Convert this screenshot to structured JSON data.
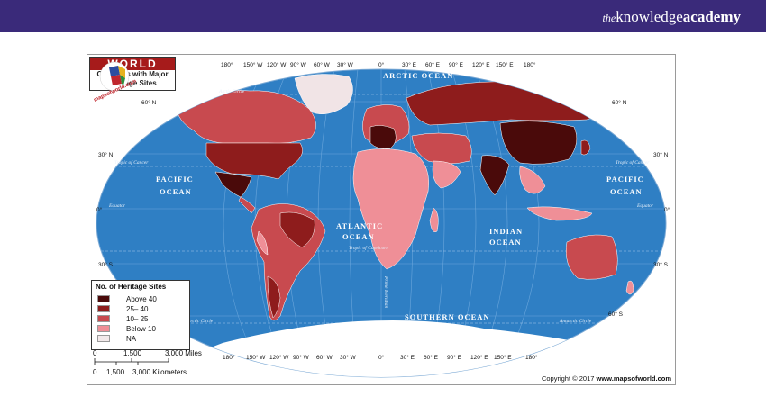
{
  "brand": {
    "the": "the",
    "knowledge": "knowledge",
    "academy": "academy"
  },
  "map": {
    "title": "WORLD",
    "subtitle_line1": "Countries with Major",
    "subtitle_line2": "Heritage Sites",
    "top_longitudes": [
      "180°",
      "150° W",
      "120° W",
      "90° W",
      "60° W",
      "30° W",
      "0°",
      "30° E",
      "60° E",
      "90° E",
      "120° E",
      "150° E",
      "180°"
    ],
    "bottom_longitudes": [
      "180°",
      "150° W",
      "120° W",
      "90° W",
      "60° W",
      "30° W",
      "0°",
      "30° E",
      "60° E",
      "90° E",
      "120° E",
      "150° E",
      "180°"
    ],
    "latitudes_left": [
      "60° N",
      "30° N",
      "0°",
      "30° S"
    ],
    "latitudes_right": [
      "60° N",
      "30° N",
      "0°",
      "30° S",
      "60° S"
    ],
    "oceans": {
      "arctic": "ARCTIC OCEAN",
      "pacific_left_1": "PACIFIC",
      "pacific_left_2": "OCEAN",
      "pacific_right_1": "PACIFIC",
      "pacific_right_2": "OCEAN",
      "atlantic_1": "ATLANTIC",
      "atlantic_2": "OCEAN",
      "indian_1": "INDIAN",
      "indian_2": "OCEAN",
      "southern": "SOUTHERN OCEAN"
    },
    "lines": {
      "arctic_circle_left": "Arctic Circle",
      "tropic_cancer_left": "Tropic of Cancer",
      "tropic_cancer_right": "Tropic of Cancer",
      "equator_left": "Equator",
      "equator_right": "Equator",
      "tropic_capricorn": "Tropic of Capricorn",
      "antarctic_circle_left": "Antarctic Circle",
      "antarctic_circle_right": "Antarctic Circle",
      "prime_meridian": "Prime Meridian"
    },
    "legend": {
      "title": "No. of Heritage Sites",
      "items": [
        {
          "label": "Above 40",
          "color": "#4a0a0a"
        },
        {
          "label": "25– 40",
          "color": "#8e1c1c"
        },
        {
          "label": "10– 25",
          "color": "#c84a4f"
        },
        {
          "label": "Below 10",
          "color": "#ef8f97"
        },
        {
          "label": "NA",
          "color": "#f2e9ea"
        }
      ]
    },
    "scale": {
      "miles_ticks": [
        "0",
        "1,500",
        "3,000 Miles"
      ],
      "km_ticks": [
        "0",
        "1,500",
        "3,000 Kilometers"
      ]
    },
    "copyright_prefix": "Copyright © 2017 ",
    "copyright_site": "www.mapsofworld.com",
    "logo_text": "mapsofworld.com",
    "colors": {
      "ocean": "#2f7fc4",
      "ice": "#ffffff"
    }
  }
}
